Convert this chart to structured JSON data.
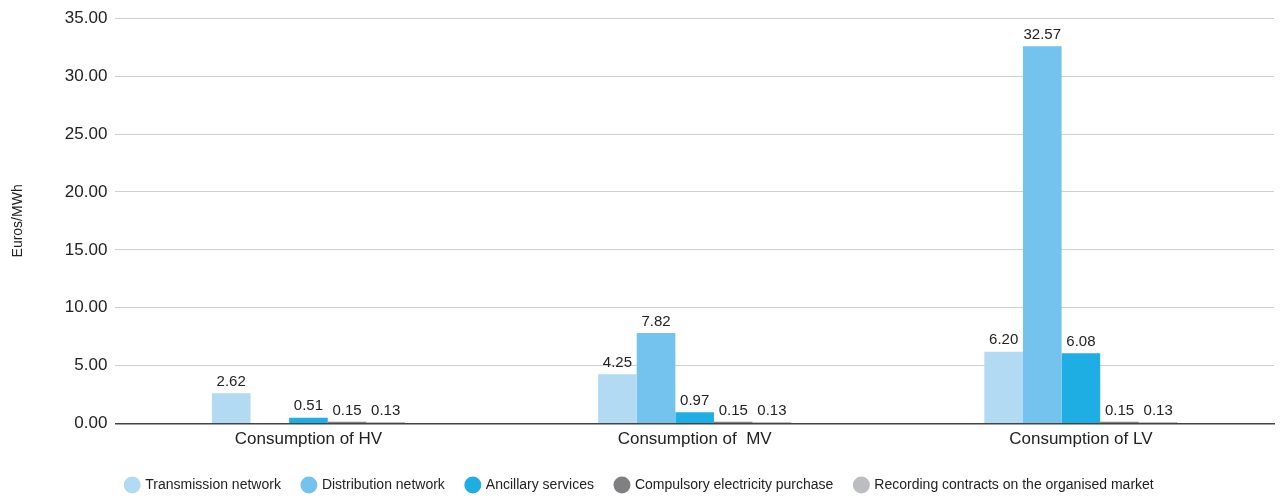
{
  "chart_data": {
    "type": "bar",
    "ylabel": "Euros/MWh",
    "categories": [
      "Consumption of HV",
      "Consumption of  MV",
      "Consumption of LV"
    ],
    "series": [
      {
        "name": "Transmission network",
        "color": "#b3daf3",
        "values": [
          2.62,
          4.25,
          6.2
        ],
        "value_labels": [
          "2.62",
          "4.25",
          "6.20"
        ]
      },
      {
        "name": "Distribution network",
        "color": "#74c3ee",
        "values": [
          null,
          7.82,
          32.57
        ],
        "value_labels": [
          null,
          "7.82",
          "32.57"
        ]
      },
      {
        "name": "Ancillary services",
        "color": "#1eaee4",
        "values": [
          0.51,
          0.97,
          6.08
        ],
        "value_labels": [
          "0.51",
          "0.97",
          "6.08"
        ]
      },
      {
        "name": "Compulsory electricity purchase",
        "color": "#808083",
        "values": [
          0.15,
          0.15,
          0.15
        ],
        "value_labels": [
          "0.15",
          "0.15",
          "0.15"
        ]
      },
      {
        "name": "Recording contracts on the organised market",
        "color": "#bcbdc0",
        "values": [
          0.13,
          0.13,
          0.13
        ],
        "value_labels": [
          "0.13",
          "0.13",
          "0.13"
        ]
      }
    ],
    "ylim": [
      0,
      35
    ],
    "yticks": [
      {
        "value": 0,
        "label": "0.00"
      },
      {
        "value": 5,
        "label": "5.00"
      },
      {
        "value": 10,
        "label": "10.00"
      },
      {
        "value": 15,
        "label": "15.00"
      },
      {
        "value": 20,
        "label": "20.00"
      },
      {
        "value": 25,
        "label": "25.00"
      },
      {
        "value": 30,
        "label": "30.00"
      },
      {
        "value": 35,
        "label": "35.00"
      }
    ],
    "grid": "y",
    "legend": "bottom"
  }
}
